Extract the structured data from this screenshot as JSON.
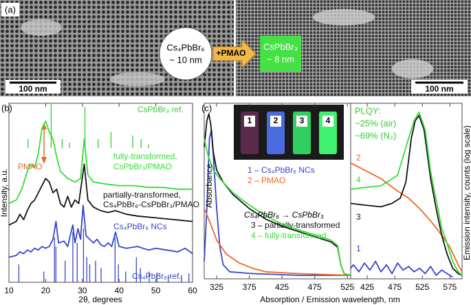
{
  "panel_a": {
    "label": "(a)",
    "left_particle": [
      "Cs₄PbBr₆",
      "~ 10 nm"
    ],
    "arrow_label": "+PMAO",
    "right_particle": [
      "CsPbBr₃",
      "~ 8 nm"
    ],
    "scale_bar_left": "100 nm",
    "scale_bar_right": "100 nm"
  },
  "chart_data": [
    {
      "type": "line",
      "panel_label": "(b)",
      "xlabel": "2θ, degrees",
      "ylabel": "Intensity, a.u.",
      "annotation": "PMAO",
      "xlim": [
        10,
        60
      ],
      "xticks": [
        10,
        20,
        30,
        40,
        50,
        60
      ],
      "ylim": [
        0,
        100
      ],
      "series": [
        {
          "label": [
            "CsPbBr₃ ref."
          ],
          "color": "#33cc33",
          "style": "stick",
          "base": 75,
          "x": [
            15.2,
            21.5,
            24.5,
            26.5,
            30.7,
            34.3,
            37.8,
            43.7,
            46,
            48
          ],
          "values": [
            80,
            100,
            80,
            78,
            98,
            80,
            84,
            82,
            80,
            77
          ]
        },
        {
          "label": [
            "fully-transformed,",
            "CsPbBr₃/PMAO"
          ],
          "color": "#33dd33",
          "style": "curve",
          "x": [
            10,
            12,
            13.5,
            15,
            16,
            17,
            18,
            19,
            20,
            21,
            22,
            23,
            24,
            26,
            28,
            29.5,
            30.5,
            31.5,
            33,
            36,
            40,
            44,
            48,
            52,
            56,
            60
          ],
          "values": [
            44,
            46,
            52,
            62,
            66,
            64,
            72,
            86,
            90,
            84,
            80,
            70,
            62,
            58,
            56,
            58,
            80,
            60,
            56,
            55,
            54,
            54,
            53,
            53,
            52,
            52
          ]
        },
        {
          "label": [
            "partially-transformed,",
            "Cs₄PbBr₆-CsPbBr₃/PMAO"
          ],
          "color": "#111111",
          "style": "curve",
          "x": [
            10,
            12,
            13,
            14,
            15,
            16,
            17,
            18,
            19,
            20,
            21,
            22,
            23,
            24,
            25,
            26,
            27,
            28,
            29,
            30.5,
            31.5,
            33,
            35,
            37,
            39,
            42,
            45,
            50,
            55,
            60
          ],
          "values": [
            32,
            34,
            38,
            35,
            40,
            44,
            46,
            50,
            54,
            58,
            56,
            50,
            52,
            44,
            42,
            48,
            42,
            46,
            44,
            66,
            46,
            42,
            40,
            39,
            40,
            38,
            37,
            36,
            35,
            34
          ]
        },
        {
          "label": [
            "Cs₄PbBr₆ NCs"
          ],
          "color": "#3344cc",
          "style": "curve",
          "x": [
            10,
            12,
            13,
            14,
            15,
            16,
            17,
            18,
            19,
            20,
            21,
            22,
            22.8,
            23.5,
            25,
            26,
            27.4,
            28,
            28.8,
            29.5,
            30.2,
            31,
            32,
            33,
            34,
            35,
            36,
            37,
            38,
            39,
            40,
            42,
            45,
            48,
            50,
            53,
            56,
            58,
            60
          ],
          "values": [
            14,
            15,
            17,
            16,
            18,
            17,
            19,
            18,
            20,
            19,
            20,
            24,
            34,
            22,
            23,
            20,
            32,
            22,
            30,
            24,
            43,
            26,
            24,
            22,
            24,
            21,
            20,
            22,
            20,
            28,
            20,
            19,
            20,
            18,
            19,
            18,
            17,
            19,
            16
          ]
        },
        {
          "label": [
            "Cs₄PbBr₆ ref."
          ],
          "color": "#3344cc",
          "style": "stick",
          "base": 0,
          "x": [
            12.7,
            19.5,
            22.4,
            22.8,
            25.3,
            27.4,
            28.6,
            30.3,
            31.2,
            32,
            33.6,
            35.1,
            38.9,
            39.8,
            41.8,
            44.7,
            45.8,
            48.2,
            50.3,
            53.4,
            57,
            59
          ],
          "values": [
            10,
            6,
            25,
            20,
            12,
            28,
            22,
            30,
            14,
            10,
            12,
            8,
            25,
            10,
            6,
            14,
            8,
            6,
            5,
            4,
            4,
            5
          ]
        }
      ]
    },
    {
      "type": "line",
      "panel_label": "(c)",
      "ylabel": "Absorbance",
      "legend_heading": "Cs₄PbBr₆ → CsPbBr₃",
      "inset_labels": [
        "1",
        "2",
        "3",
        "4"
      ],
      "xlim": [
        306,
        530
      ],
      "xticks": [
        325,
        375,
        425,
        475,
        525
      ],
      "ylim": [
        0,
        100
      ],
      "series": [
        {
          "label": [
            "1 – Cs₄PbBr₆ NCs"
          ],
          "color": "#3344cc",
          "style": "curve",
          "x": [
            306,
            310,
            314,
            317,
            320,
            325,
            330,
            335,
            345,
            380,
            450,
            530
          ],
          "values": [
            10,
            40,
            80,
            85,
            70,
            40,
            18,
            8,
            4,
            3,
            2,
            2
          ]
        },
        {
          "label": [
            "2 – PMAO"
          ],
          "color": "#ee6622",
          "style": "curve",
          "x": [
            306,
            315,
            325,
            340,
            360,
            380,
            400,
            450,
            530
          ],
          "values": [
            40,
            32,
            22,
            14,
            9,
            6,
            4,
            3,
            2
          ]
        },
        {
          "label": [
            "3 – partially-transformed"
          ],
          "color": "#111111",
          "style": "curve",
          "x": [
            306,
            310,
            313,
            316,
            320,
            325,
            335,
            350,
            375,
            400,
            425,
            450,
            475,
            500,
            510,
            515,
            520,
            530
          ],
          "values": [
            75,
            90,
            94,
            88,
            72,
            62,
            55,
            48,
            40,
            34,
            30,
            27,
            24,
            21,
            18,
            8,
            3,
            2
          ]
        },
        {
          "label": [
            "4 – fully-transformed"
          ],
          "color": "#33dd33",
          "style": "curve",
          "x": [
            306,
            312,
            316,
            320,
            330,
            350,
            375,
            400,
            425,
            450,
            475,
            500,
            510,
            515,
            520,
            530
          ],
          "values": [
            80,
            70,
            66,
            62,
            57,
            49,
            42,
            36,
            31,
            28,
            25,
            22,
            19,
            8,
            3,
            2
          ]
        }
      ]
    },
    {
      "type": "line",
      "xlabel": "Absorption / Emission wavelength, nm",
      "ylabel": "Emission intensity, counts (log scale)",
      "annotation": [
        "PLQY:",
        "~25% (air)",
        "~69% (N₂)"
      ],
      "xlim": [
        395,
        597
      ],
      "xticks": [
        425,
        475,
        525,
        575
      ],
      "ylim": [
        0,
        100
      ],
      "series": [
        {
          "label": [
            "1"
          ],
          "color": "#3344cc",
          "style": "curve",
          "x": [
            395,
            400,
            410,
            420,
            430,
            440,
            450,
            460,
            470,
            480,
            490,
            500,
            510,
            520,
            530,
            540,
            550,
            560,
            570,
            580
          ],
          "values": [
            6,
            8,
            4,
            9,
            5,
            10,
            4,
            8,
            3,
            9,
            5,
            7,
            4,
            6,
            3,
            7,
            2,
            5,
            3,
            1
          ]
        },
        {
          "label": [
            "2"
          ],
          "color": "#ee6622",
          "style": "curve",
          "x": [
            395,
            420,
            450,
            480,
            500,
            520,
            540,
            560,
            575,
            590,
            597
          ],
          "values": [
            66,
            62,
            57,
            50,
            46,
            40,
            33,
            25,
            18,
            8,
            4
          ]
        },
        {
          "label": [
            "3"
          ],
          "color": "#111111",
          "style": "curve",
          "x": [
            395,
            420,
            450,
            470,
            485,
            495,
            505,
            512,
            519,
            528,
            540,
            550,
            560,
            570,
            580,
            590,
            597
          ],
          "values": [
            43,
            42,
            41,
            43,
            46,
            55,
            80,
            90,
            93,
            85,
            57,
            40,
            25,
            14,
            6,
            3,
            2
          ]
        },
        {
          "label": [
            "4"
          ],
          "color": "#33dd33",
          "style": "curve",
          "x": [
            395,
            420,
            450,
            480,
            500,
            510,
            519,
            530,
            540,
            550,
            560,
            570,
            580,
            590,
            597
          ],
          "values": [
            51,
            52,
            53,
            59,
            80,
            90,
            95,
            85,
            61,
            45,
            29,
            20,
            10,
            4,
            2
          ]
        }
      ]
    }
  ]
}
